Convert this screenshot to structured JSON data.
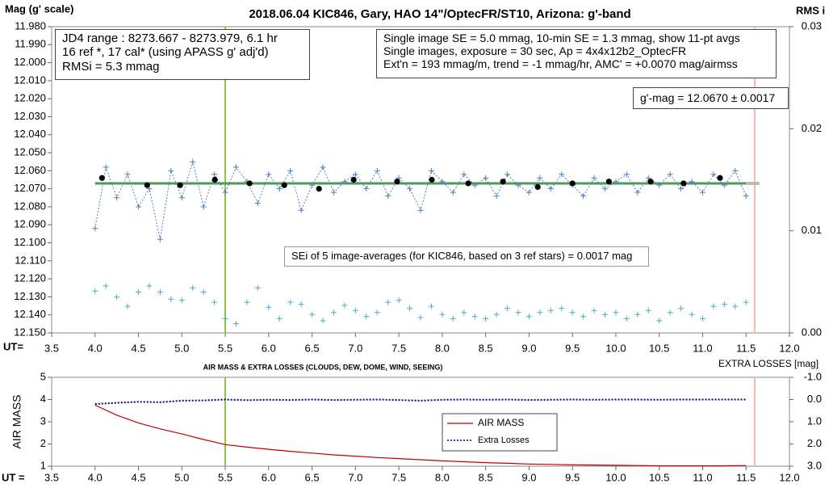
{
  "chart_data": [
    {
      "type": "line",
      "title": "2018.06.04  KIC846,  Gary, HAO 14\"/OptecFR/ST10,  Arizona:  g'-band",
      "ylabel": "Mag (g' scale)",
      "y2label": "RMS i",
      "xlabel": "UT=",
      "xlim": [
        3.5,
        12.0
      ],
      "xticks": [
        {
          "value": 3.5,
          "label": "3.5"
        },
        {
          "value": 4,
          "label": "4.0"
        },
        {
          "value": 4.5,
          "label": "4.5"
        },
        {
          "value": 5,
          "label": "5.0"
        },
        {
          "value": 5.5,
          "label": "5.5"
        },
        {
          "value": 6,
          "label": "6.0"
        },
        {
          "value": 6.5,
          "label": "6.5"
        },
        {
          "value": 7,
          "label": "7.0"
        },
        {
          "value": 7.5,
          "label": "7.5"
        },
        {
          "value": 8,
          "label": "8.0"
        },
        {
          "value": 8.5,
          "label": "8.5"
        },
        {
          "value": 9,
          "label": "9.0"
        },
        {
          "value": 9.5,
          "label": "9.5"
        },
        {
          "value": 10,
          "label": "10.0"
        },
        {
          "value": 10.5,
          "label": "10.5"
        },
        {
          "value": 11,
          "label": "11.0"
        },
        {
          "value": 11.5,
          "label": "11.5"
        },
        {
          "value": 12,
          "label": "12.0"
        }
      ],
      "ylim": [
        12.15,
        11.98
      ],
      "yticks": [
        {
          "value": 11.98,
          "label": "11.980"
        },
        {
          "value": 11.99,
          "label": "11.990"
        },
        {
          "value": 12.0,
          "label": "12.000"
        },
        {
          "value": 12.01,
          "label": "12.010"
        },
        {
          "value": 12.02,
          "label": "12.020"
        },
        {
          "value": 12.03,
          "label": "12.030"
        },
        {
          "value": 12.04,
          "label": "12.040"
        },
        {
          "value": 12.05,
          "label": "12.050"
        },
        {
          "value": 12.06,
          "label": "12.060"
        },
        {
          "value": 12.07,
          "label": "12.070"
        },
        {
          "value": 12.08,
          "label": "12.080"
        },
        {
          "value": 12.09,
          "label": "12.090"
        },
        {
          "value": 12.1,
          "label": "12.100"
        },
        {
          "value": 12.11,
          "label": "12.110"
        },
        {
          "value": 12.12,
          "label": "12.120"
        },
        {
          "value": 12.13,
          "label": "12.130"
        },
        {
          "value": 12.14,
          "label": "12.140"
        },
        {
          "value": 12.15,
          "label": "12.150"
        }
      ],
      "y2lim": [
        0,
        0.03
      ],
      "y2ticks": [
        {
          "value": 0,
          "label": "0.00"
        },
        0.01,
        0.02,
        0.03
      ],
      "boxes": [
        [
          "JD4 range : 8273.667 - 8273.979, 6.1  hr",
          "16 ref *, 17 cal* (using APASS g' adj'd)",
          "RMSi = 5.3 mmag"
        ],
        [
          "Single image SE = 5.0 mmag, 10-min SE = 1.3 mmag, show  11-pt avgs",
          "Single images, exposure = 30 sec, Ap = 4x4x12b2_OptecFR",
          "Ext'n = 193 mmag/m, trend =  -1 mmag/hr, AMC' = +0.0070 mag/airmss"
        ],
        [
          "g'-mag = 12.0670 ± 0.0017"
        ],
        [
          "SEi of 5 image-averages (for KIC846, based on 3 ref stars) = 0.0017 mag"
        ]
      ],
      "vlines": [
        {
          "x": 5.5,
          "color": "#8cc63f"
        },
        {
          "x": 11.6,
          "color": "#f4b6b6"
        }
      ],
      "fit": {
        "value": 12.067,
        "x": [
          4.0,
          11.5
        ],
        "color": "#4f9a55"
      },
      "series": [
        {
          "color": "#4f81bd",
          "marker": "+",
          "line": "dotted",
          "x": [
            4.0,
            4.125,
            4.25,
            4.375,
            4.5,
            4.625,
            4.75,
            4.875,
            5.0,
            5.125,
            5.25,
            5.375,
            5.5,
            5.625,
            5.75,
            5.875,
            6.0,
            6.125,
            6.25,
            6.375,
            6.5,
            6.625,
            6.75,
            6.875,
            7.0,
            7.125,
            7.25,
            7.375,
            7.5,
            7.625,
            7.75,
            7.875,
            8.0,
            8.125,
            8.25,
            8.375,
            8.5,
            8.625,
            8.75,
            8.875,
            9.0,
            9.125,
            9.25,
            9.375,
            9.5,
            9.625,
            9.75,
            9.875,
            10.0,
            10.125,
            10.25,
            10.375,
            10.5,
            10.625,
            10.75,
            10.875,
            11.0,
            11.125,
            11.25,
            11.375,
            11.5
          ],
          "values": [
            12.092,
            12.058,
            12.075,
            12.062,
            12.08,
            12.07,
            12.098,
            12.06,
            12.075,
            12.055,
            12.08,
            12.062,
            12.072,
            12.058,
            12.066,
            12.078,
            12.062,
            12.07,
            12.06,
            12.082,
            12.068,
            12.058,
            12.072,
            12.066,
            12.062,
            12.07,
            12.06,
            12.074,
            12.064,
            12.07,
            12.082,
            12.06,
            12.066,
            12.072,
            12.062,
            12.068,
            12.064,
            12.074,
            12.062,
            12.068,
            12.072,
            12.064,
            12.07,
            12.062,
            12.068,
            12.074,
            12.064,
            12.07,
            12.066,
            12.062,
            12.072,
            12.064,
            12.068,
            12.062,
            12.07,
            12.066,
            12.072,
            12.062,
            12.068,
            12.06,
            12.074
          ]
        },
        {
          "color": "#000000",
          "marker": "o",
          "line": "none",
          "x": [
            4.08,
            4.6,
            4.98,
            5.38,
            5.78,
            6.18,
            6.58,
            6.98,
            7.48,
            7.88,
            8.3,
            8.7,
            9.1,
            9.5,
            9.92,
            10.4,
            10.78,
            11.2
          ],
          "values": [
            12.064,
            12.068,
            12.068,
            12.065,
            12.067,
            12.068,
            12.07,
            12.065,
            12.066,
            12.065,
            12.067,
            12.066,
            12.069,
            12.067,
            12.066,
            12.066,
            12.067,
            12.064
          ]
        },
        {
          "color": "#4bacc6",
          "marker": "+",
          "line": "none",
          "axis": "y2",
          "x": [
            4.0,
            4.125,
            4.25,
            4.375,
            4.5,
            4.625,
            4.75,
            4.875,
            5.0,
            5.125,
            5.25,
            5.375,
            5.5,
            5.625,
            5.75,
            5.875,
            6.0,
            6.125,
            6.25,
            6.375,
            6.5,
            6.625,
            6.75,
            6.875,
            7.0,
            7.125,
            7.25,
            7.375,
            7.5,
            7.625,
            7.75,
            7.875,
            8.0,
            8.125,
            8.25,
            8.375,
            8.5,
            8.625,
            8.75,
            8.875,
            9.0,
            9.125,
            9.25,
            9.375,
            9.5,
            9.625,
            9.75,
            9.875,
            10.0,
            10.125,
            10.25,
            10.375,
            10.5,
            10.625,
            10.75,
            10.875,
            11.0,
            11.125,
            11.25,
            11.375,
            11.5
          ],
          "values": [
            0.0041,
            0.0046,
            0.0035,
            0.0026,
            0.004,
            0.0046,
            0.004,
            0.0033,
            0.0032,
            0.0044,
            0.004,
            0.003,
            0.0014,
            0.0009,
            0.003,
            0.0044,
            0.0025,
            0.0014,
            0.003,
            0.0028,
            0.0018,
            0.0012,
            0.002,
            0.0027,
            0.0022,
            0.0016,
            0.002,
            0.003,
            0.0032,
            0.0024,
            0.0015,
            0.0026,
            0.0018,
            0.0014,
            0.002,
            0.0016,
            0.0014,
            0.0018,
            0.0024,
            0.002,
            0.0016,
            0.002,
            0.0022,
            0.0024,
            0.002,
            0.0016,
            0.0022,
            0.0018,
            0.002,
            0.0014,
            0.0018,
            0.0022,
            0.0012,
            0.002,
            0.0024,
            0.0018,
            0.0014,
            0.0026,
            0.0028,
            0.0026,
            0.003
          ]
        }
      ]
    },
    {
      "type": "line",
      "title": "AIR MASS & EXTRA LOSSES (CLOUDS, DEW, DOME, WIND, SEEING)",
      "ylabel": "AIR MASS",
      "y2label": "EXTRA LOSSES [mag]",
      "xlabel": "UT =",
      "xlim": [
        3.5,
        12.0
      ],
      "xticks": [
        {
          "value": 3.5,
          "label": "3.5"
        },
        {
          "value": 4,
          "label": "4.0"
        },
        {
          "value": 4.5,
          "label": "4.5"
        },
        {
          "value": 5,
          "label": "5.0"
        },
        {
          "value": 5.5,
          "label": "5.5"
        },
        {
          "value": 6,
          "label": "6.0"
        },
        {
          "value": 6.5,
          "label": "6.5"
        },
        {
          "value": 7,
          "label": "7.0"
        },
        {
          "value": 7.5,
          "label": "7.5"
        },
        {
          "value": 8,
          "label": "8.0"
        },
        {
          "value": 8.5,
          "label": "8.5"
        },
        {
          "value": 9,
          "label": "9.0"
        },
        {
          "value": 9.5,
          "label": "9.5"
        },
        {
          "value": 10,
          "label": "10.0"
        },
        {
          "value": 10.5,
          "label": "10.5"
        },
        {
          "value": 11,
          "label": "11.0"
        },
        {
          "value": 11.5,
          "label": "11.5"
        },
        {
          "value": 12,
          "label": "12.0"
        }
      ],
      "ylim": [
        1,
        5
      ],
      "yticks": [
        1,
        2,
        3,
        4,
        5
      ],
      "y2lim": [
        3,
        -1
      ],
      "y2ticks": [
        {
          "value": -1,
          "label": "-1.0"
        },
        {
          "value": 0,
          "label": "0.0"
        },
        {
          "value": 1,
          "label": "1.0"
        },
        {
          "value": 2,
          "label": "2.0"
        },
        {
          "value": 3,
          "label": "3.0"
        }
      ],
      "vlines": [
        {
          "x": 5.5,
          "color": "#8cc63f"
        },
        {
          "x": 11.6,
          "color": "#f4b6b6"
        }
      ],
      "legend": "center",
      "series": [
        {
          "name": "AIR MASS",
          "color": "#c00000",
          "marker": "none",
          "line": "solid",
          "x": [
            4.0,
            4.25,
            4.5,
            4.75,
            5.0,
            5.25,
            5.5,
            5.75,
            6.0,
            6.25,
            6.5,
            6.75,
            7.0,
            7.25,
            7.5,
            7.75,
            8.0,
            8.25,
            8.5,
            8.75,
            9.0,
            9.25,
            9.5,
            9.75,
            10.0,
            10.25,
            10.5,
            10.75,
            11.0,
            11.25,
            11.5
          ],
          "values": [
            3.75,
            3.3,
            2.95,
            2.68,
            2.45,
            2.2,
            1.97,
            1.86,
            1.76,
            1.67,
            1.59,
            1.51,
            1.45,
            1.39,
            1.34,
            1.29,
            1.24,
            1.2,
            1.16,
            1.13,
            1.1,
            1.08,
            1.06,
            1.05,
            1.04,
            1.03,
            1.02,
            1.02,
            1.02,
            1.02,
            1.03
          ]
        },
        {
          "name": "Extra Losses",
          "color": "#00008b",
          "marker": "none",
          "line": "dotted",
          "axis": "y2",
          "x": [
            4.0,
            4.25,
            4.5,
            4.75,
            5.0,
            5.25,
            5.5,
            5.75,
            6.0,
            6.25,
            6.5,
            6.75,
            7.0,
            7.25,
            7.5,
            7.75,
            8.0,
            8.25,
            8.5,
            8.75,
            9.0,
            9.25,
            9.5,
            9.75,
            10.0,
            10.25,
            10.5,
            10.75,
            11.0,
            11.25,
            11.5
          ],
          "values": [
            0.2,
            0.15,
            0.1,
            0.12,
            0.05,
            0.04,
            0.0,
            0.03,
            0.01,
            0.02,
            0.0,
            0.02,
            0.01,
            0.0,
            0.02,
            0.05,
            0.01,
            0.0,
            0.01,
            0.0,
            0.02,
            0.01,
            0.0,
            0.01,
            0.0,
            0.0,
            0.01,
            0.0,
            0.0,
            0.0,
            0.0
          ]
        }
      ]
    }
  ]
}
